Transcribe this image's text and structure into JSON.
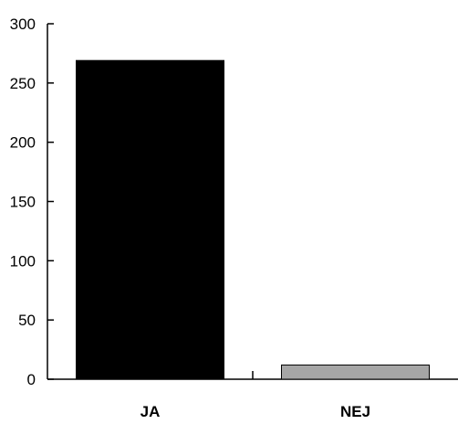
{
  "chart_data": {
    "type": "bar",
    "categories": [
      "JA",
      "NEJ"
    ],
    "values": [
      269,
      12
    ],
    "colors": [
      "#000000",
      "#a6a6a6"
    ],
    "ylim": [
      0,
      300
    ],
    "yticks": [
      0,
      50,
      100,
      150,
      200,
      250,
      300
    ],
    "title": "",
    "xlabel": "",
    "ylabel": "",
    "grid": false,
    "legend": "none"
  }
}
